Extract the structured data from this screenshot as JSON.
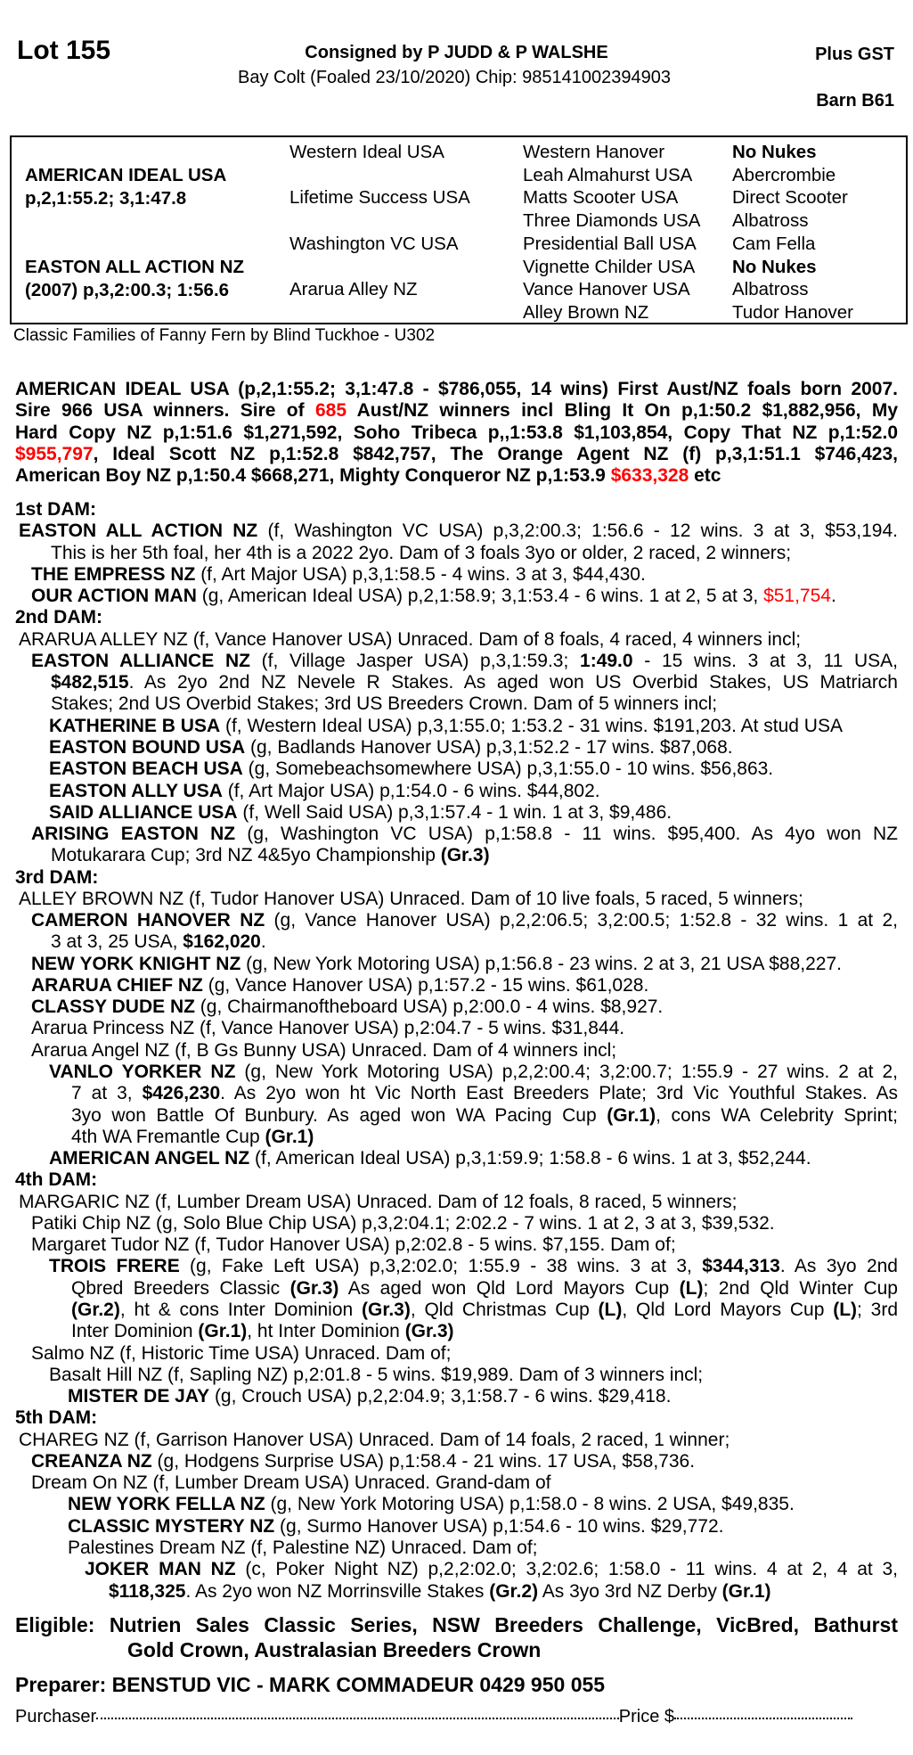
{
  "header": {
    "lot": "Lot 155",
    "consigned": "Consigned by P JUDD & P WALSHE",
    "description": "Bay Colt (Foaled 23/10/2020) Chip: 985141002394903",
    "gst": "Plus GST",
    "barn": "Barn B61"
  },
  "pedigree": {
    "sire_name": "AMERICAN IDEAL USA",
    "sire_record": "p,2,1:55.2; 3,1:47.8",
    "dam_name": "EASTON ALL ACTION NZ",
    "dam_record": "(2007) p,3,2:00.3; 1:56.6",
    "gen2": [
      "Western Ideal USA",
      "Lifetime Success USA",
      "Washington VC USA",
      "Ararua Alley NZ"
    ],
    "gen3": [
      "Western Hanover",
      "Leah Almahurst USA",
      "Matts Scooter USA",
      "Three Diamonds USA",
      "Presidential Ball USA",
      "Vignette Childer USA",
      "Vance Hanover USA",
      "Alley Brown NZ"
    ],
    "gen4": [
      [
        "No Nukes",
        "b"
      ],
      [
        "Abercrombie",
        ""
      ],
      [
        "Direct Scooter",
        ""
      ],
      [
        "Albatross",
        ""
      ],
      [
        "Cam Fella",
        ""
      ],
      [
        "No Nukes",
        "b"
      ],
      [
        "Albatross",
        ""
      ],
      [
        "Tudor Hanover",
        ""
      ]
    ]
  },
  "families": "Classic Families of Fanny Fern by Blind Tuckhoe - U302",
  "sire_paragraph": [
    [
      [
        "AMERICAN IDEAL USA (p,2,1:55.2; 3,1:47.8 - $786,055, 14 wins) First Aust/NZ foals born 2007.",
        "b"
      ]
    ],
    [
      [
        "Sire 966 USA winners. Sire of ",
        "b"
      ],
      [
        "685",
        "br"
      ],
      [
        " Aust/NZ winners incl Bling It On p,1:50.2 $1,882,956, My",
        "b"
      ]
    ],
    [
      [
        "Hard Copy NZ p,1:51.6 $1,271,592, Soho Tribeca p,,1:53.8 $1,103,854, Copy That NZ p,1:52.0",
        "b"
      ]
    ],
    [
      [
        "$955,797",
        "br"
      ],
      [
        ", Ideal Scott NZ p,1:52.8 $842,757, The Orange Agent NZ (f) p,3,1:51.1 $746,423,",
        "b"
      ]
    ],
    [
      [
        "American Boy NZ p,1:50.4 $668,271, Mighty Conqueror NZ p,1:53.9 ",
        "b"
      ],
      [
        "$633,328",
        "br"
      ],
      [
        " etc",
        "b"
      ]
    ]
  ],
  "dams": [
    {
      "heading": "1st DAM:",
      "entries": [
        {
          "lvl": 0,
          "lines": [
            [
              [
                "EASTON ALL ACTION NZ",
                "b"
              ],
              [
                " (f, Washington VC USA) p,3,2:00.3; 1:56.6 - 12 wins. 3 at 3, $53,194.",
                ""
              ]
            ],
            [
              [
                "This is her 5th foal, her 4th is a 2022 2yo. Dam of 3 foals 3yo or older, 2 raced, 2 winners;",
                ""
              ]
            ]
          ]
        },
        {
          "lvl": 1,
          "lines": [
            [
              [
                "THE EMPRESS NZ",
                "b"
              ],
              [
                " (f, Art Major USA) p,3,1:58.5 - 4 wins. 3 at 3, $44,430.",
                ""
              ]
            ]
          ]
        },
        {
          "lvl": 1,
          "lines": [
            [
              [
                "OUR ACTION MAN",
                "b"
              ],
              [
                " (g, American Ideal USA) p,2,1:58.9; 3,1:53.4 - 6 wins. 1 at 2, 5 at 3, ",
                ""
              ],
              [
                "$51,754",
                "r"
              ],
              [
                ".",
                ""
              ]
            ]
          ]
        }
      ]
    },
    {
      "heading": "2nd DAM:",
      "entries": [
        {
          "lvl": 0,
          "lines": [
            [
              [
                "ARARUA ALLEY NZ (f, Vance Hanover USA) Unraced. Dam of 8 foals, 4 raced, 4 winners incl;",
                ""
              ]
            ]
          ]
        },
        {
          "lvl": 1,
          "lines": [
            [
              [
                "EASTON ALLIANCE NZ",
                "b"
              ],
              [
                " (f, Village Jasper USA) p,3,1:59.3; ",
                ""
              ],
              [
                "1:49.0",
                "b"
              ],
              [
                " - 15 wins. 3 at 3, 11 USA,",
                ""
              ]
            ],
            [
              [
                "$482,515",
                "b"
              ],
              [
                ". As 2yo 2nd NZ Nevele R Stakes. As aged won US Overbid Stakes, US Matriarch",
                ""
              ]
            ],
            [
              [
                "Stakes; 2nd US Overbid Stakes; 3rd US Breeders Crown. Dam of 5 winners incl;",
                ""
              ]
            ]
          ]
        },
        {
          "lvl": 2,
          "lines": [
            [
              [
                "KATHERINE B USA",
                "b"
              ],
              [
                " (f, Western Ideal USA) p,3,1:55.0; 1:53.2 - 31 wins. $191,203. At stud USA",
                ""
              ]
            ]
          ]
        },
        {
          "lvl": 2,
          "lines": [
            [
              [
                "EASTON BOUND USA",
                "b"
              ],
              [
                " (g, Badlands Hanover USA) p,3,1:52.2 - 17 wins. $87,068.",
                ""
              ]
            ]
          ]
        },
        {
          "lvl": 2,
          "lines": [
            [
              [
                "EASTON BEACH USA",
                "b"
              ],
              [
                " (g, Somebeachsomewhere USA) p,3,1:55.0 - 10 wins. $56,863.",
                ""
              ]
            ]
          ]
        },
        {
          "lvl": 2,
          "lines": [
            [
              [
                "EASTON ALLY USA",
                "b"
              ],
              [
                " (f, Art Major USA) p,1:54.0 - 6 wins. $44,802.",
                ""
              ]
            ]
          ]
        },
        {
          "lvl": 2,
          "lines": [
            [
              [
                "SAID ALLIANCE USA",
                "b"
              ],
              [
                " (f, Well Said USA) p,3,1:57.4 - 1 win. 1 at 3, $9,486.",
                ""
              ]
            ]
          ]
        },
        {
          "lvl": 1,
          "lines": [
            [
              [
                "ARISING EASTON NZ",
                "b"
              ],
              [
                " (g, Washington VC USA) p,1:58.8 - 11 wins. $95,400. As 4yo won NZ",
                ""
              ]
            ],
            [
              [
                "Motukarara Cup; 3rd NZ 4&5yo Championship ",
                ""
              ],
              [
                "(Gr.3)",
                "b"
              ]
            ]
          ]
        }
      ]
    },
    {
      "heading": "3rd DAM:",
      "entries": [
        {
          "lvl": 0,
          "lines": [
            [
              [
                "ALLEY BROWN NZ (f, Tudor Hanover USA) Unraced. Dam of 10 live foals, 5 raced, 5 winners;",
                ""
              ]
            ]
          ]
        },
        {
          "lvl": 1,
          "lines": [
            [
              [
                "CAMERON HANOVER NZ",
                "b"
              ],
              [
                " (g, Vance Hanover USA) p,2,2:06.5; 3,2:00.5; 1:52.8 - 32 wins. 1 at 2,",
                ""
              ]
            ],
            [
              [
                "3 at 3, 25 USA, ",
                ""
              ],
              [
                "$162,020",
                "b"
              ],
              [
                ".",
                ""
              ]
            ]
          ]
        },
        {
          "lvl": 1,
          "lines": [
            [
              [
                "NEW YORK KNIGHT NZ",
                "b"
              ],
              [
                " (g, New York Motoring USA) p,1:56.8 - 23 wins. 2 at 3, 21 USA $88,227.",
                ""
              ]
            ]
          ]
        },
        {
          "lvl": 1,
          "lines": [
            [
              [
                "ARARUA CHIEF NZ",
                "b"
              ],
              [
                " (g, Vance Hanover USA) p,1:57.2 - 15 wins. $61,028.",
                ""
              ]
            ]
          ]
        },
        {
          "lvl": 1,
          "lines": [
            [
              [
                "CLASSY DUDE NZ",
                "b"
              ],
              [
                " (g, Chairmanoftheboard USA) p,2:00.0 - 4 wins. $8,927.",
                ""
              ]
            ]
          ]
        },
        {
          "lvl": 1,
          "lines": [
            [
              [
                "Ararua Princess NZ (f, Vance Hanover USA) p,2:04.7 - 5 wins. $31,844.",
                ""
              ]
            ]
          ]
        },
        {
          "lvl": 1,
          "lines": [
            [
              [
                "Ararua Angel NZ (f, B Gs Bunny USA) Unraced. Dam of 4 winners incl;",
                ""
              ]
            ]
          ]
        },
        {
          "lvl": 2,
          "lines": [
            [
              [
                "VANLO YORKER NZ",
                "b"
              ],
              [
                " (g, New York Motoring USA) p,2,2:00.4; 3,2:00.7; 1:55.9 - 27 wins. 2 at 2,",
                ""
              ]
            ],
            [
              [
                "7 at 3, ",
                ""
              ],
              [
                "$426,230",
                "b"
              ],
              [
                ". As 2yo won ht Vic North East Breeders Plate; 3rd Vic Youthful Stakes. As",
                ""
              ]
            ],
            [
              [
                "3yo won Battle Of Bunbury. As aged won WA Pacing Cup ",
                ""
              ],
              [
                "(Gr.1)",
                "b"
              ],
              [
                ", cons WA Celebrity Sprint;",
                ""
              ]
            ],
            [
              [
                "4th WA Fremantle Cup ",
                ""
              ],
              [
                "(Gr.1)",
                "b"
              ]
            ]
          ]
        },
        {
          "lvl": 2,
          "lines": [
            [
              [
                "AMERICAN ANGEL NZ",
                "b"
              ],
              [
                " (f, American Ideal USA) p,3,1:59.9; 1:58.8 - 6 wins. 1 at 3, $52,244.",
                ""
              ]
            ]
          ]
        }
      ]
    },
    {
      "heading": "4th DAM:",
      "entries": [
        {
          "lvl": 0,
          "lines": [
            [
              [
                "MARGARIC NZ (f, Lumber Dream USA) Unraced. Dam of 12 foals, 8 raced, 5 winners;",
                ""
              ]
            ]
          ]
        },
        {
          "lvl": 1,
          "lines": [
            [
              [
                "Patiki Chip NZ (g, Solo Blue Chip USA) p,3,2:04.1; 2:02.2 - 7 wins. 1 at 2, 3 at 3, $39,532.",
                ""
              ]
            ]
          ]
        },
        {
          "lvl": 1,
          "lines": [
            [
              [
                "Margaret Tudor NZ (f, Tudor Hanover USA) p,2:02.8 - 5 wins. $7,155. Dam of;",
                ""
              ]
            ]
          ]
        },
        {
          "lvl": 2,
          "lines": [
            [
              [
                "TROIS FRERE",
                "b"
              ],
              [
                " (g, Fake Left USA) p,3,2:02.0; 1:55.9 - 38 wins. 3 at 3, ",
                ""
              ],
              [
                "$344,313",
                "b"
              ],
              [
                ". As 3yo 2nd",
                ""
              ]
            ],
            [
              [
                "Qbred Breeders Classic ",
                ""
              ],
              [
                "(Gr.3)",
                "b"
              ],
              [
                " As aged won Qld Lord Mayors Cup ",
                ""
              ],
              [
                "(L)",
                "b"
              ],
              [
                "; 2nd Qld Winter Cup",
                ""
              ]
            ],
            [
              [
                "(Gr.2)",
                "b"
              ],
              [
                ", ht & cons Inter Dominion ",
                ""
              ],
              [
                "(Gr.3)",
                "b"
              ],
              [
                ", Qld Christmas Cup ",
                ""
              ],
              [
                "(L)",
                "b"
              ],
              [
                ", Qld Lord Mayors Cup ",
                ""
              ],
              [
                "(L)",
                "b"
              ],
              [
                "; 3rd",
                ""
              ]
            ],
            [
              [
                "Inter Dominion ",
                ""
              ],
              [
                "(Gr.1)",
                "b"
              ],
              [
                ", ht Inter Dominion ",
                ""
              ],
              [
                "(Gr.3)",
                "b"
              ]
            ]
          ]
        },
        {
          "lvl": 1,
          "lines": [
            [
              [
                "Salmo NZ (f, Historic Time USA) Unraced. Dam of;",
                ""
              ]
            ]
          ]
        },
        {
          "lvl": 2,
          "lines": [
            [
              [
                "Basalt Hill NZ (f, Sapling NZ) p,2:01.8 - 5 wins. $19,989. Dam of 3 winners incl;",
                ""
              ]
            ]
          ]
        },
        {
          "lvl": 3,
          "lines": [
            [
              [
                "MISTER DE JAY",
                "b"
              ],
              [
                " (g, Crouch USA) p,2,2:04.9; 3,1:58.7 - 6 wins. $29,418.",
                ""
              ]
            ]
          ]
        }
      ]
    },
    {
      "heading": "5th DAM:",
      "entries": [
        {
          "lvl": 0,
          "lines": [
            [
              [
                "CHAREG NZ (f, Garrison Hanover USA) Unraced. Dam of 14 foals, 2 raced, 1 winner;",
                ""
              ]
            ]
          ]
        },
        {
          "lvl": 1,
          "lines": [
            [
              [
                "CREANZA NZ",
                "b"
              ],
              [
                " (g, Hodgens Surprise USA) p,1:58.4 - 21 wins. 17 USA, $58,736.",
                ""
              ]
            ]
          ]
        },
        {
          "lvl": 1,
          "lines": [
            [
              [
                "Dream On NZ (f, Lumber Dream USA) Unraced. Grand-dam of",
                ""
              ]
            ]
          ]
        },
        {
          "lvl": 3,
          "lines": [
            [
              [
                "NEW YORK FELLA NZ",
                "b"
              ],
              [
                " (g, New York Motoring USA) p,1:58.0 - 8 wins. 2 USA, $49,835.",
                ""
              ]
            ]
          ]
        },
        {
          "lvl": 3,
          "lines": [
            [
              [
                "CLASSIC MYSTERY NZ",
                "b"
              ],
              [
                " (g, Surmo Hanover USA) p,1:54.6 - 10 wins. $29,772.",
                ""
              ]
            ]
          ]
        },
        {
          "lvl": 3,
          "lines": [
            [
              [
                "Palestines Dream NZ (f, Palestine NZ) Unraced. Dam of;",
                ""
              ]
            ]
          ]
        },
        {
          "lvl": 4,
          "lines": [
            [
              [
                "JOKER MAN NZ",
                "b"
              ],
              [
                " (c, Poker Night NZ) p,2,2:02.0; 3,2:02.6; 1:58.0 - 11 wins. 4 at 2, 4 at 3,",
                ""
              ]
            ],
            [
              [
                "$118,325",
                "b"
              ],
              [
                ". As 2yo won NZ Morrinsville Stakes ",
                ""
              ],
              [
                "(Gr.2)",
                "b"
              ],
              [
                " As 3yo 3rd NZ Derby ",
                ""
              ],
              [
                "(Gr.1)",
                "b"
              ]
            ]
          ]
        }
      ]
    }
  ],
  "footer": {
    "eligible_line1": "Eligible: Nutrien Sales Classic Series, NSW Breeders Challenge, VicBred, Bathurst",
    "eligible_line2": "Gold Crown, Australasian Breeders Crown",
    "preparer": "Preparer: BENSTUD VIC - MARK COMMADEUR 0429 950 055",
    "purchaser_label": "Purchaser",
    "price_label": "Price $"
  },
  "colors": {
    "highlight": "#ff0000",
    "text": "#000000"
  }
}
